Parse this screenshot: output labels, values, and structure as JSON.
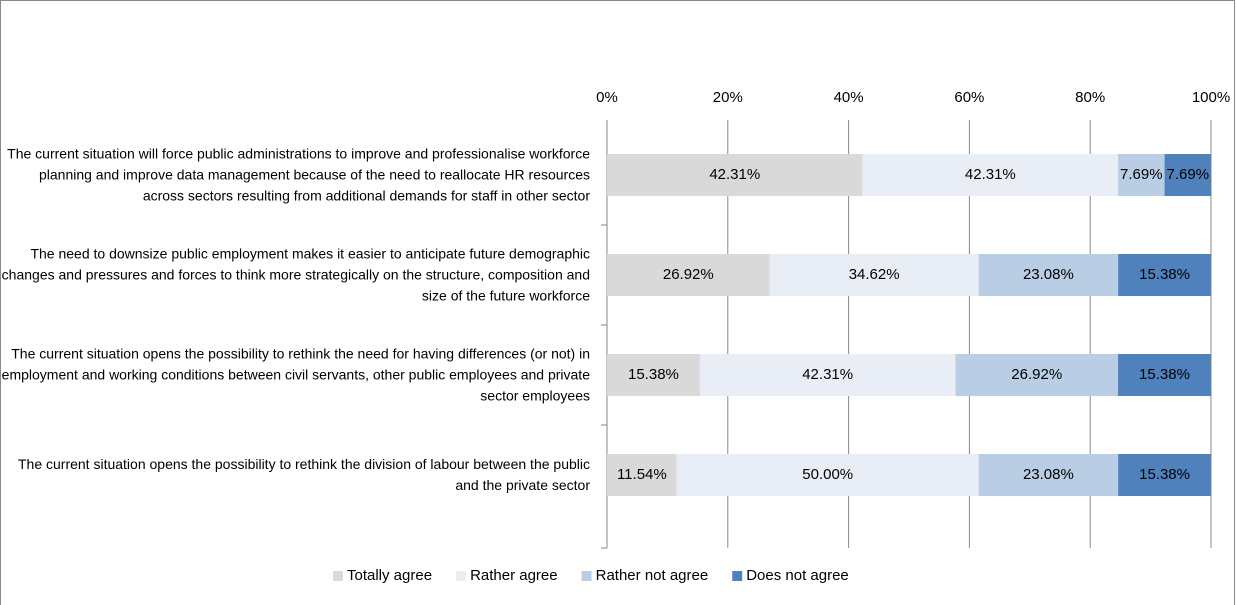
{
  "chart_data": {
    "type": "stacked_barh",
    "categories": [
      "The current situation will force public administrations to improve and professionalise workforce planning and improve data management because of the need to reallocate HR resources across sectors resulting from additional demands for staff in other sector",
      "The need to downsize public employment makes it easier to anticipate future demographic changes and pressures and forces to think more strategically on the structure, composition and size of the future workforce",
      "The current situation opens the possibility to rethink the need for having differences (or not) in employment and working conditions between civil servants, other public employees and private sector employees",
      "The current situation opens the possibility to rethink the division of labour between the public and the private sector"
    ],
    "series": [
      {
        "name": "Totally agree",
        "color": "#d9d9d9",
        "values": [
          42.31,
          26.92,
          15.38,
          11.54
        ],
        "value_labels": [
          "42.31%",
          "26.92%",
          "15.38%",
          "11.54%"
        ]
      },
      {
        "name": "Rather agree",
        "color": "#e9eef6",
        "values": [
          42.31,
          34.62,
          42.31,
          50.0
        ],
        "value_labels": [
          "42.31%",
          "34.62%",
          "42.31%",
          "50.00%"
        ]
      },
      {
        "name": "Rather not agree",
        "color": "#b9cde5",
        "values": [
          7.69,
          23.08,
          26.92,
          23.08
        ],
        "value_labels": [
          "7.69%",
          "23.08%",
          "26.92%",
          "23.08%"
        ]
      },
      {
        "name": "Does not agree",
        "color": "#4f81bd",
        "values": [
          7.69,
          15.38,
          15.38,
          15.38
        ],
        "value_labels": [
          "7.69%",
          "15.38%",
          "15.38%",
          "15.38%"
        ]
      }
    ],
    "xlim": [
      0,
      100
    ],
    "xticks": [
      {
        "value": 0,
        "label": "0%"
      },
      {
        "value": 20,
        "label": "20%"
      },
      {
        "value": 40,
        "label": "40%"
      },
      {
        "value": 60,
        "label": "60%"
      },
      {
        "value": 80,
        "label": "80%"
      },
      {
        "value": 100,
        "label": "100%"
      }
    ],
    "grid": true,
    "legend": "bottom"
  }
}
